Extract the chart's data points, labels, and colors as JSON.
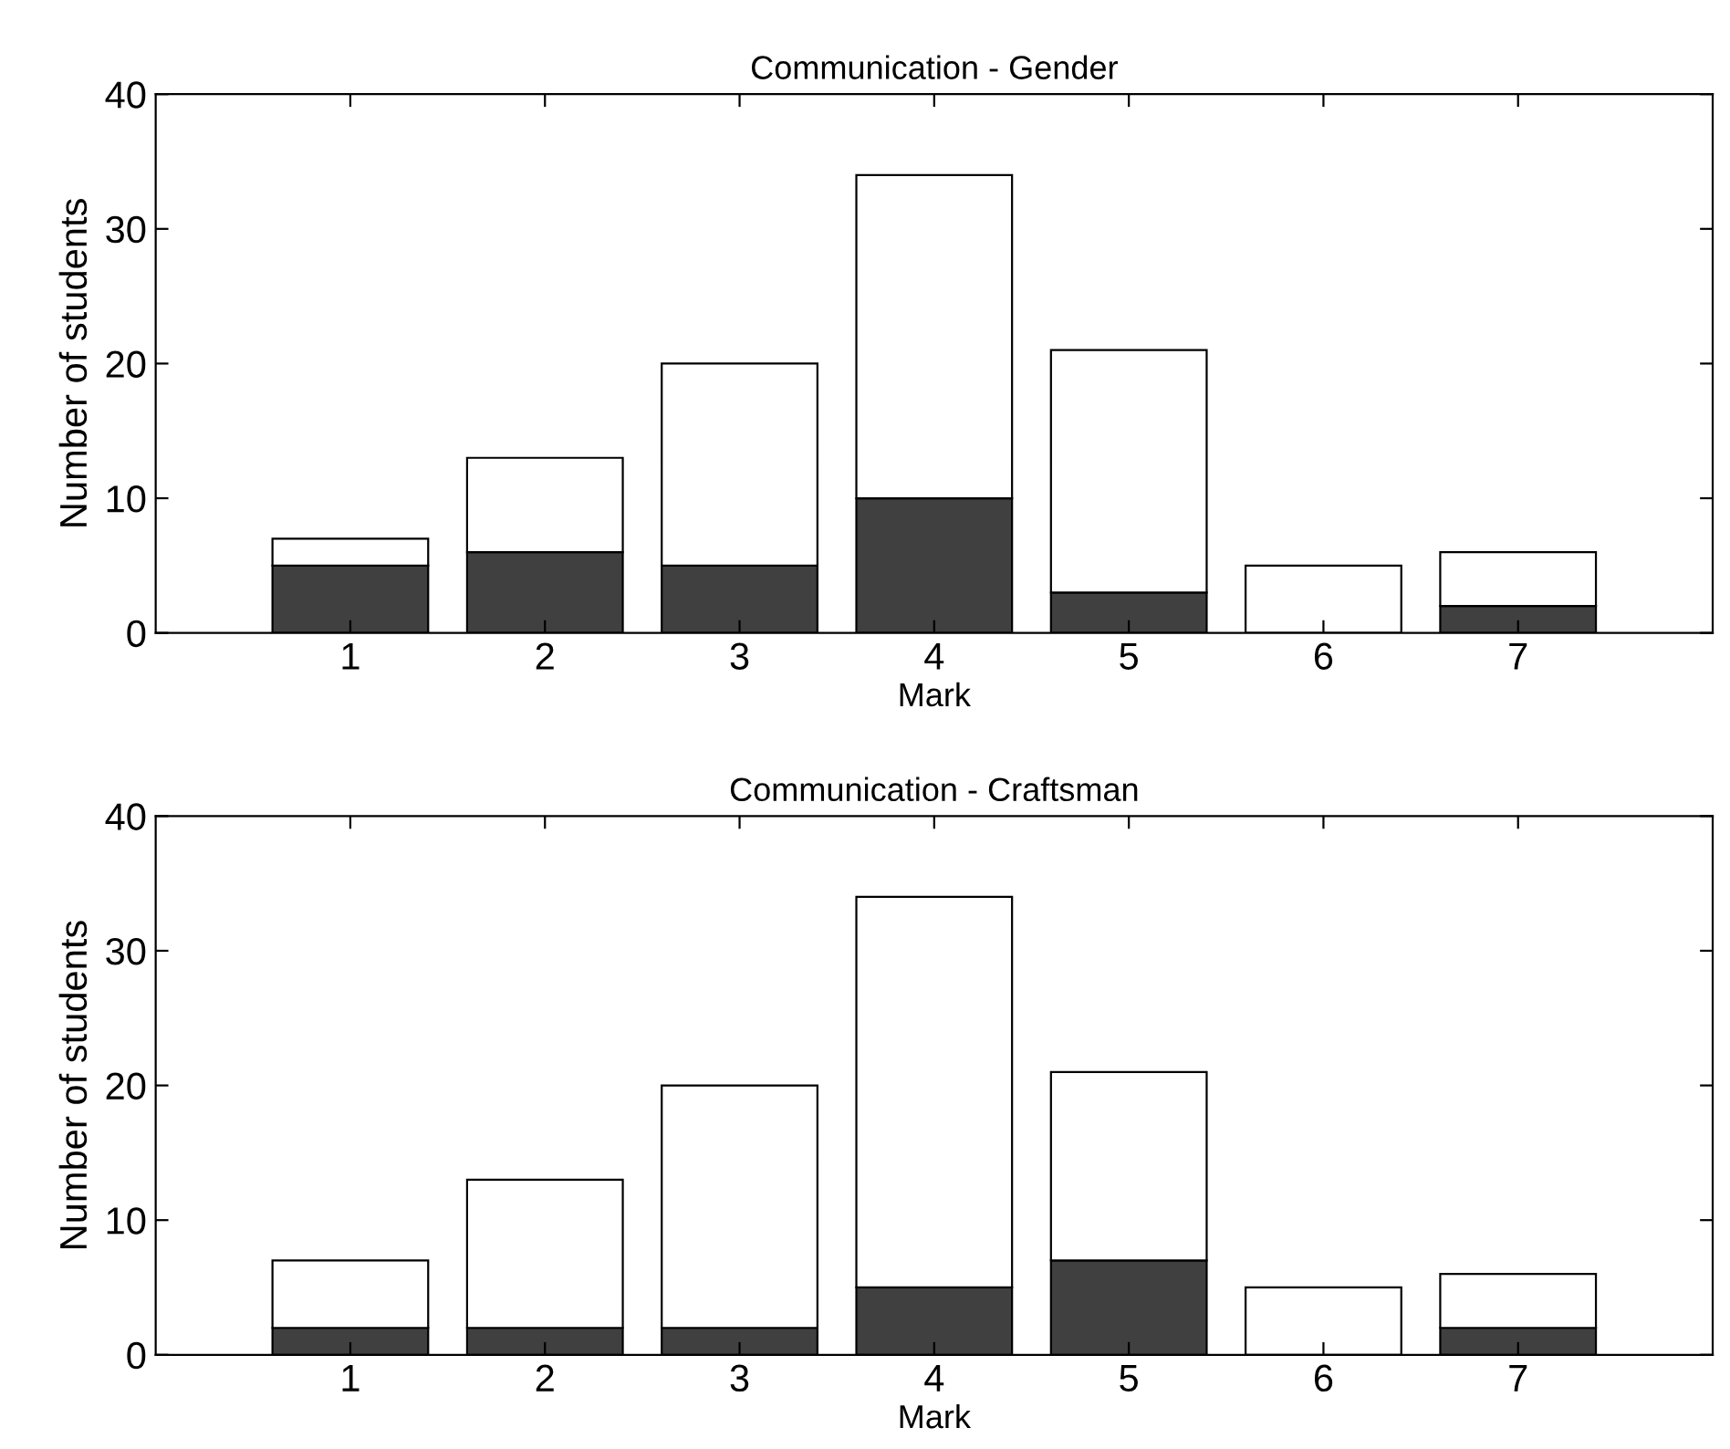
{
  "chart_data": [
    {
      "type": "bar",
      "title": "Communication - Gender",
      "xlabel": "Mark",
      "ylabel": "Number of students",
      "x": [
        1,
        2,
        3,
        4,
        5,
        6,
        7
      ],
      "stacked": true,
      "xlim": [
        0,
        8
      ],
      "xticks": [
        1,
        2,
        3,
        4,
        5,
        6,
        7
      ],
      "ylim": [
        0,
        40
      ],
      "yticks": [
        0,
        10,
        20,
        30,
        40
      ],
      "series": [
        {
          "color": "#404040",
          "values": [
            5,
            6,
            5,
            10,
            3,
            0,
            2
          ]
        },
        {
          "color": "#ffffff",
          "values": [
            2,
            7,
            15,
            24,
            18,
            5,
            4
          ]
        }
      ]
    },
    {
      "type": "bar",
      "title": "Communication - Craftsman",
      "xlabel": "Mark",
      "ylabel": "Number of students",
      "x": [
        1,
        2,
        3,
        4,
        5,
        6,
        7
      ],
      "stacked": true,
      "xlim": [
        0,
        8
      ],
      "xticks": [
        1,
        2,
        3,
        4,
        5,
        6,
        7
      ],
      "ylim": [
        0,
        40
      ],
      "yticks": [
        0,
        10,
        20,
        30,
        40
      ],
      "series": [
        {
          "color": "#404040",
          "values": [
            2,
            2,
            2,
            5,
            7,
            0,
            2
          ]
        },
        {
          "color": "#ffffff",
          "values": [
            5,
            11,
            18,
            29,
            14,
            5,
            4
          ]
        }
      ]
    }
  ]
}
